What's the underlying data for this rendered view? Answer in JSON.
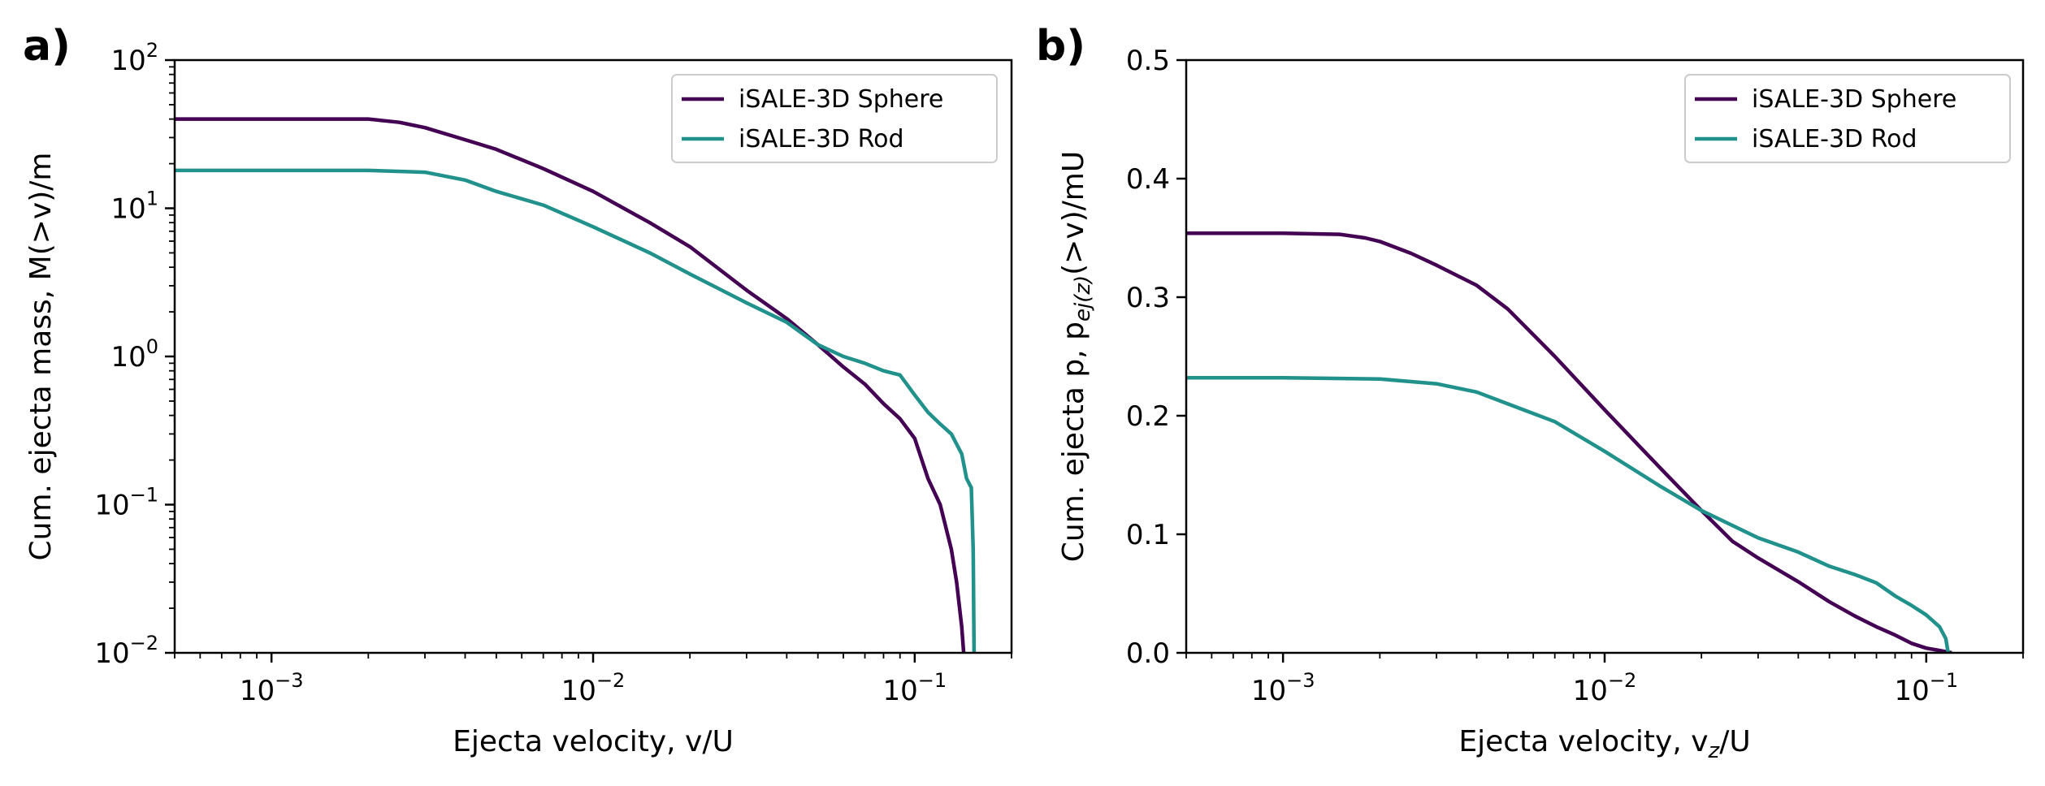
{
  "chart_data": [
    {
      "type": "line",
      "panel_label": "a)",
      "xlabel": "Ejecta velocity, v/U",
      "ylabel": "Cum. ejecta mass, M(>v)/m",
      "xscale": "log",
      "yscale": "log",
      "xlim": [
        0.0005,
        0.2
      ],
      "ylim": [
        0.01,
        100
      ],
      "x_ticks": [
        {
          "base": "10",
          "exp": "−3"
        },
        {
          "base": "10",
          "exp": "−2"
        },
        {
          "base": "10",
          "exp": "−1"
        }
      ],
      "y_ticks": [
        {
          "base": "10",
          "exp": "−2"
        },
        {
          "base": "10",
          "exp": "−1"
        },
        {
          "base": "10",
          "exp": "0"
        },
        {
          "base": "10",
          "exp": "1"
        },
        {
          "base": "10",
          "exp": "2"
        }
      ],
      "legend": {
        "position": "top-right"
      },
      "series": [
        {
          "name": "iSALE-3D Sphere",
          "color": "#440154",
          "x": [
            0.0005,
            0.001,
            0.002,
            0.0025,
            0.003,
            0.004,
            0.005,
            0.007,
            0.01,
            0.015,
            0.02,
            0.03,
            0.04,
            0.05,
            0.06,
            0.07,
            0.08,
            0.09,
            0.1,
            0.11,
            0.12,
            0.13,
            0.135,
            0.14,
            0.142
          ],
          "y": [
            40,
            40,
            40,
            38,
            35,
            29,
            25,
            18.5,
            13,
            8,
            5.5,
            2.8,
            1.8,
            1.2,
            0.85,
            0.65,
            0.48,
            0.38,
            0.28,
            0.15,
            0.1,
            0.05,
            0.03,
            0.015,
            0.01
          ]
        },
        {
          "name": "iSALE-3D Rod",
          "color": "#21918c",
          "x": [
            0.0005,
            0.001,
            0.002,
            0.003,
            0.004,
            0.005,
            0.007,
            0.01,
            0.015,
            0.02,
            0.03,
            0.04,
            0.05,
            0.06,
            0.07,
            0.08,
            0.09,
            0.1,
            0.11,
            0.12,
            0.13,
            0.14,
            0.145,
            0.15,
            0.152,
            0.153
          ],
          "y": [
            18,
            18,
            18,
            17.5,
            15.5,
            13,
            10.5,
            7.5,
            5,
            3.6,
            2.3,
            1.7,
            1.2,
            1.0,
            0.9,
            0.8,
            0.75,
            0.55,
            0.42,
            0.35,
            0.3,
            0.22,
            0.15,
            0.13,
            0.05,
            0.01
          ]
        }
      ]
    },
    {
      "type": "line",
      "panel_label": "b)",
      "xlabel_pre": "Ejecta velocity, v",
      "xlabel_sub": "z",
      "xlabel_post": "/U",
      "ylabel_pre": "Cum. ejecta p, p",
      "ylabel_sub": "ej(z)",
      "ylabel_post": "(>v)/mU",
      "xscale": "log",
      "yscale": "linear",
      "xlim": [
        0.0005,
        0.2
      ],
      "ylim": [
        0.0,
        0.5
      ],
      "x_ticks": [
        {
          "base": "10",
          "exp": "−3"
        },
        {
          "base": "10",
          "exp": "−2"
        },
        {
          "base": "10",
          "exp": "−1"
        }
      ],
      "y_ticks": [
        "0.0",
        "0.1",
        "0.2",
        "0.3",
        "0.4",
        "0.5"
      ],
      "legend": {
        "position": "top-right"
      },
      "series": [
        {
          "name": "iSALE-3D Sphere",
          "color": "#440154",
          "x": [
            0.0005,
            0.001,
            0.0015,
            0.0018,
            0.002,
            0.0025,
            0.003,
            0.004,
            0.005,
            0.007,
            0.01,
            0.015,
            0.02,
            0.025,
            0.03,
            0.04,
            0.05,
            0.06,
            0.07,
            0.08,
            0.09,
            0.1,
            0.11,
            0.12
          ],
          "y": [
            0.354,
            0.354,
            0.353,
            0.35,
            0.347,
            0.337,
            0.327,
            0.31,
            0.29,
            0.25,
            0.205,
            0.155,
            0.12,
            0.094,
            0.08,
            0.06,
            0.043,
            0.031,
            0.022,
            0.015,
            0.008,
            0.004,
            0.002,
            0.0
          ]
        },
        {
          "name": "iSALE-3D Rod",
          "color": "#21918c",
          "x": [
            0.0005,
            0.001,
            0.002,
            0.003,
            0.004,
            0.005,
            0.007,
            0.01,
            0.015,
            0.02,
            0.03,
            0.04,
            0.05,
            0.06,
            0.07,
            0.08,
            0.09,
            0.1,
            0.11,
            0.115,
            0.117
          ],
          "y": [
            0.232,
            0.232,
            0.231,
            0.227,
            0.22,
            0.21,
            0.195,
            0.17,
            0.14,
            0.12,
            0.097,
            0.085,
            0.073,
            0.066,
            0.059,
            0.048,
            0.04,
            0.032,
            0.022,
            0.012,
            0.0
          ]
        }
      ]
    }
  ]
}
